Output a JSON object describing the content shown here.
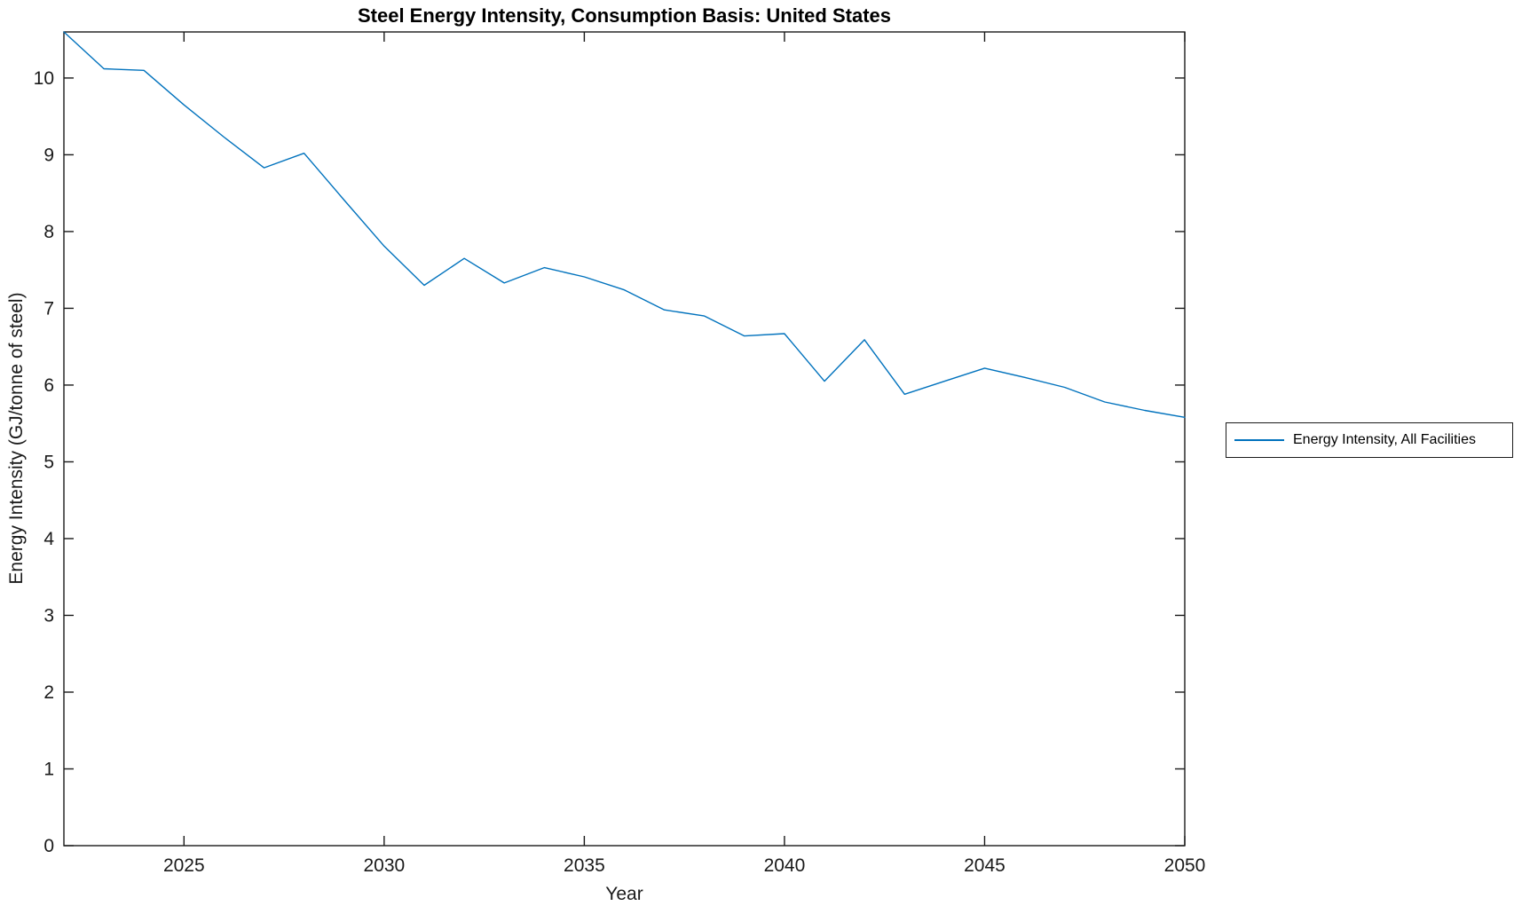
{
  "figure": {
    "background_color": "#ffffff",
    "axes_color": "#1a1a1a"
  },
  "chart_data": {
    "type": "line",
    "title": "Steel Energy Intensity, Consumption Basis: United States",
    "xlabel": "Year",
    "ylabel": "Energy Intensity (GJ/tonne of steel)",
    "xlim": [
      2022,
      2050
    ],
    "ylim": [
      0,
      10.6
    ],
    "x_ticks": [
      2025,
      2030,
      2035,
      2040,
      2045,
      2050
    ],
    "y_ticks": [
      0,
      1,
      2,
      3,
      4,
      5,
      6,
      7,
      8,
      9,
      10
    ],
    "grid": false,
    "box": true,
    "tick_direction": "in",
    "legend": {
      "position": "right-outside",
      "entries": [
        {
          "label": "Energy Intensity, All Facilities",
          "color": "#0072BD"
        }
      ]
    },
    "series": [
      {
        "name": "Energy Intensity, All Facilities",
        "color": "#0072BD",
        "x": [
          2022,
          2023,
          2024,
          2025,
          2026,
          2027,
          2028,
          2029,
          2030,
          2031,
          2032,
          2033,
          2034,
          2035,
          2036,
          2037,
          2038,
          2039,
          2040,
          2041,
          2042,
          2043,
          2044,
          2045,
          2046,
          2047,
          2048,
          2049,
          2050
        ],
        "values": [
          10.6,
          10.12,
          10.1,
          9.65,
          9.23,
          8.83,
          9.02,
          8.41,
          7.81,
          7.3,
          7.65,
          7.33,
          7.53,
          7.41,
          7.24,
          6.98,
          6.9,
          6.64,
          6.67,
          6.05,
          6.59,
          5.88,
          6.05,
          6.22,
          6.1,
          5.97,
          5.78,
          5.67,
          5.58
        ]
      }
    ]
  }
}
